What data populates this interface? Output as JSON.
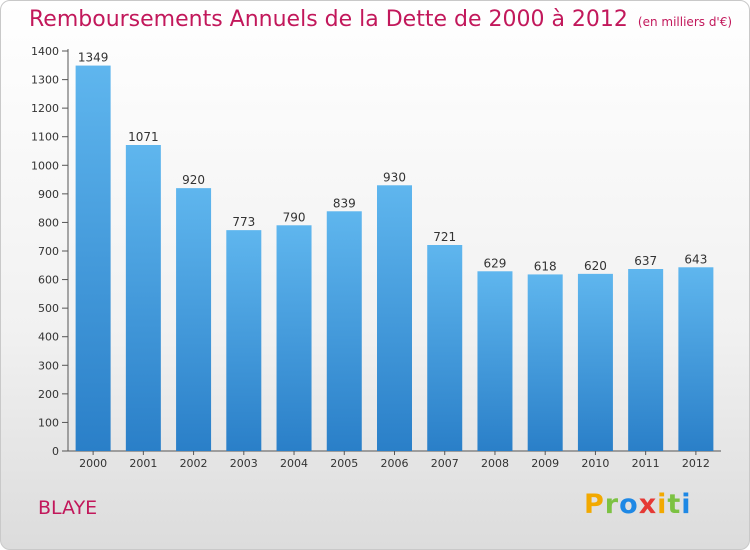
{
  "header": {
    "title": "Remboursements Annuels de la Dette de 2000 à 2012",
    "unit": "(en milliers d'€)"
  },
  "footer": {
    "city": "BLAYE",
    "logo_text": "Proxiti"
  },
  "colors": {
    "title": "#c2185b",
    "bar_top": "#5fb6ee",
    "bar_bottom": "#2a7fc8",
    "logo": [
      "#f2a900",
      "#7cc242",
      "#1e88e5",
      "#e53935",
      "#f2a900",
      "#7cc242",
      "#1e88e5"
    ]
  },
  "chart_data": {
    "type": "bar",
    "categories": [
      "2000",
      "2001",
      "2002",
      "2003",
      "2004",
      "2005",
      "2006",
      "2007",
      "2008",
      "2009",
      "2010",
      "2011",
      "2012"
    ],
    "values": [
      1349,
      1071,
      920,
      773,
      790,
      839,
      930,
      721,
      629,
      618,
      620,
      637,
      643
    ],
    "ylim": [
      0,
      1400
    ],
    "ytick_step": 100,
    "grid": false,
    "legend": "none"
  }
}
